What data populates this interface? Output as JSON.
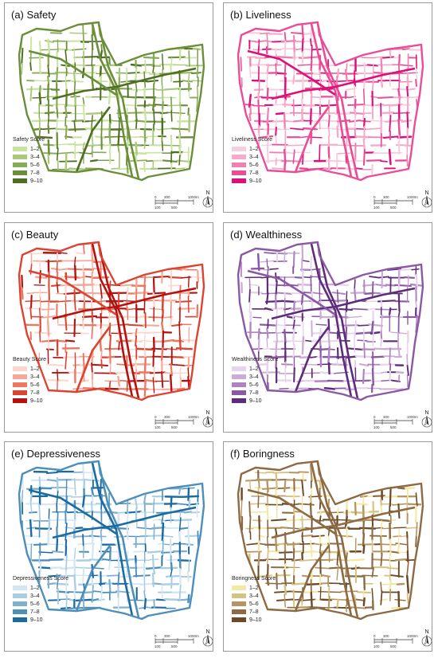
{
  "panels": [
    {
      "title": "(a) Safety",
      "legend_title": "Safety Score",
      "colors": [
        "#c9e3a1",
        "#a9c97b",
        "#88ab57",
        "#6b8e3a",
        "#4f6e22"
      ]
    },
    {
      "title": "(b) Liveliness",
      "legend_title": "Liveliness Score",
      "colors": [
        "#f9cde0",
        "#f6a9c8",
        "#f17fb0",
        "#ea4c95",
        "#de0f78"
      ]
    },
    {
      "title": "(c) Beauty",
      "legend_title": "Beauty Score",
      "colors": [
        "#fcd6cf",
        "#f7a796",
        "#ef7660",
        "#dc4431",
        "#b3120f"
      ]
    },
    {
      "title": "(d) Wealthiness",
      "legend_title": "Wealthiness Score",
      "colors": [
        "#e7d4ec",
        "#ccacd7",
        "#af83c0",
        "#8b58a5",
        "#5f2c7c"
      ]
    },
    {
      "title": "(e) Depressiveness",
      "legend_title": "Depressiveness Score",
      "colors": [
        "#d3e6f1",
        "#a9cde2",
        "#7fb0d0",
        "#4d8fbb",
        "#1c6ba0"
      ]
    },
    {
      "title": "(f) Boringness",
      "legend_title": "Boringness Score",
      "colors": [
        "#f3e8a4",
        "#d6c283",
        "#b59663",
        "#8e6a42",
        "#6a4828"
      ]
    }
  ],
  "legend_labels": [
    "1–2",
    "3–4",
    "5–6",
    "7–8",
    "9–10"
  ],
  "scale": {
    "ticks_top": [
      "0",
      "300",
      "1000m"
    ],
    "ticks_bottom": [
      "100",
      "500"
    ]
  },
  "north_label": "N"
}
